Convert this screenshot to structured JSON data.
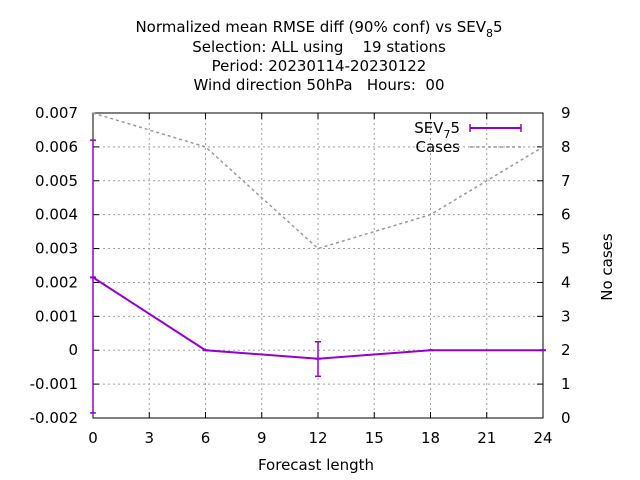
{
  "chart_data": {
    "type": "line",
    "title_lines": [
      "Normalized mean RMSE diff (90% conf) vs SEV",
      "Selection: ALL using    19 stations",
      "Period: 20230114-20230122",
      "Wind direction 50hPa   Hours:  00"
    ],
    "title_sub": {
      "main": "Normalized mean RMSE diff (90% conf) vs SEV",
      "sub": "8",
      "suffix": "5"
    },
    "xlabel": "Forecast length",
    "ylabel": "",
    "y2label": "No cases",
    "xlim": [
      0,
      24
    ],
    "ylim": [
      -0.002,
      0.007
    ],
    "y2lim": [
      0,
      9
    ],
    "xticks": [
      "0",
      "3",
      "6",
      "9",
      "12",
      "15",
      "18",
      "21",
      "24"
    ],
    "yticks": [
      "-0.002",
      "-0.001",
      "0",
      "0.001",
      "0.002",
      "0.003",
      "0.004",
      "0.005",
      "0.006",
      "0.007"
    ],
    "y2ticks": [
      "0",
      "1",
      "2",
      "3",
      "4",
      "5",
      "6",
      "7",
      "8",
      "9"
    ],
    "grid": true,
    "legend_position": "top-right",
    "series": [
      {
        "name": "SEV",
        "name_sub": "7",
        "name_suffix": "5",
        "axis": "left",
        "color": "#9400d3",
        "style": "line-errorbars",
        "x": [
          0,
          6,
          12,
          18,
          24
        ],
        "y": [
          0.00215,
          0.0,
          -0.00025,
          0.0,
          0.0
        ],
        "err_low": [
          -0.00185,
          0.0,
          -0.00077,
          0.0,
          0.0
        ],
        "err_high": [
          0.0062,
          0.0,
          0.00025,
          0.0,
          0.0
        ]
      },
      {
        "name": "Cases",
        "axis": "right",
        "color": "#999999",
        "style": "dashed",
        "x": [
          0,
          6,
          12,
          18,
          24
        ],
        "y": [
          9,
          8,
          5,
          6,
          8
        ]
      }
    ]
  }
}
